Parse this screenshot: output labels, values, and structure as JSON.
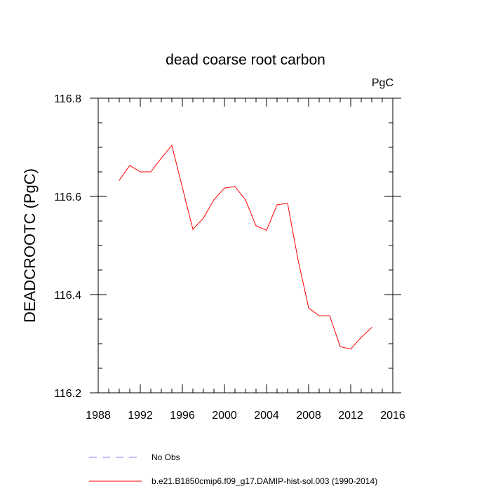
{
  "chart_data": {
    "type": "line",
    "title": "dead coarse root carbon",
    "units_label": "PgC",
    "ylabel": "DEADCROOTC  (PgC)",
    "xlabel": "",
    "xlim": [
      1988,
      2016
    ],
    "ylim": [
      116.2,
      116.8
    ],
    "x_ticks": [
      "1988",
      "1992",
      "1996",
      "2000",
      "2004",
      "2008",
      "2012",
      "2016"
    ],
    "y_ticks": [
      "116.2",
      "116.4",
      "116.6",
      "116.8"
    ],
    "series": [
      {
        "name": "b.e21.B1850cmip6.f09_g17.DAMIP-hist-sol.003 (1990-2014)",
        "color": "#ff0000",
        "x": [
          1990,
          1991,
          1992,
          1993,
          1994,
          1995,
          1996,
          1997,
          1998,
          1999,
          2000,
          2001,
          2002,
          2003,
          2004,
          2005,
          2006,
          2007,
          2008,
          2009,
          2010,
          2011,
          2012,
          2013,
          2014
        ],
        "y": [
          116.633,
          116.663,
          116.65,
          116.65,
          116.678,
          116.704,
          116.618,
          116.533,
          116.556,
          116.593,
          116.617,
          116.62,
          116.593,
          116.54,
          116.531,
          116.583,
          116.586,
          116.47,
          116.373,
          116.357,
          116.357,
          116.294,
          116.289,
          116.313,
          116.333
        ]
      }
    ],
    "legend": [
      {
        "label": "No Obs",
        "style": "dashed",
        "color": "#8080ff"
      },
      {
        "label": "b.e21.B1850cmip6.f09_g17.DAMIP-hist-sol.003 (1990-2014)",
        "style": "solid",
        "color": "#ff0000"
      }
    ]
  }
}
